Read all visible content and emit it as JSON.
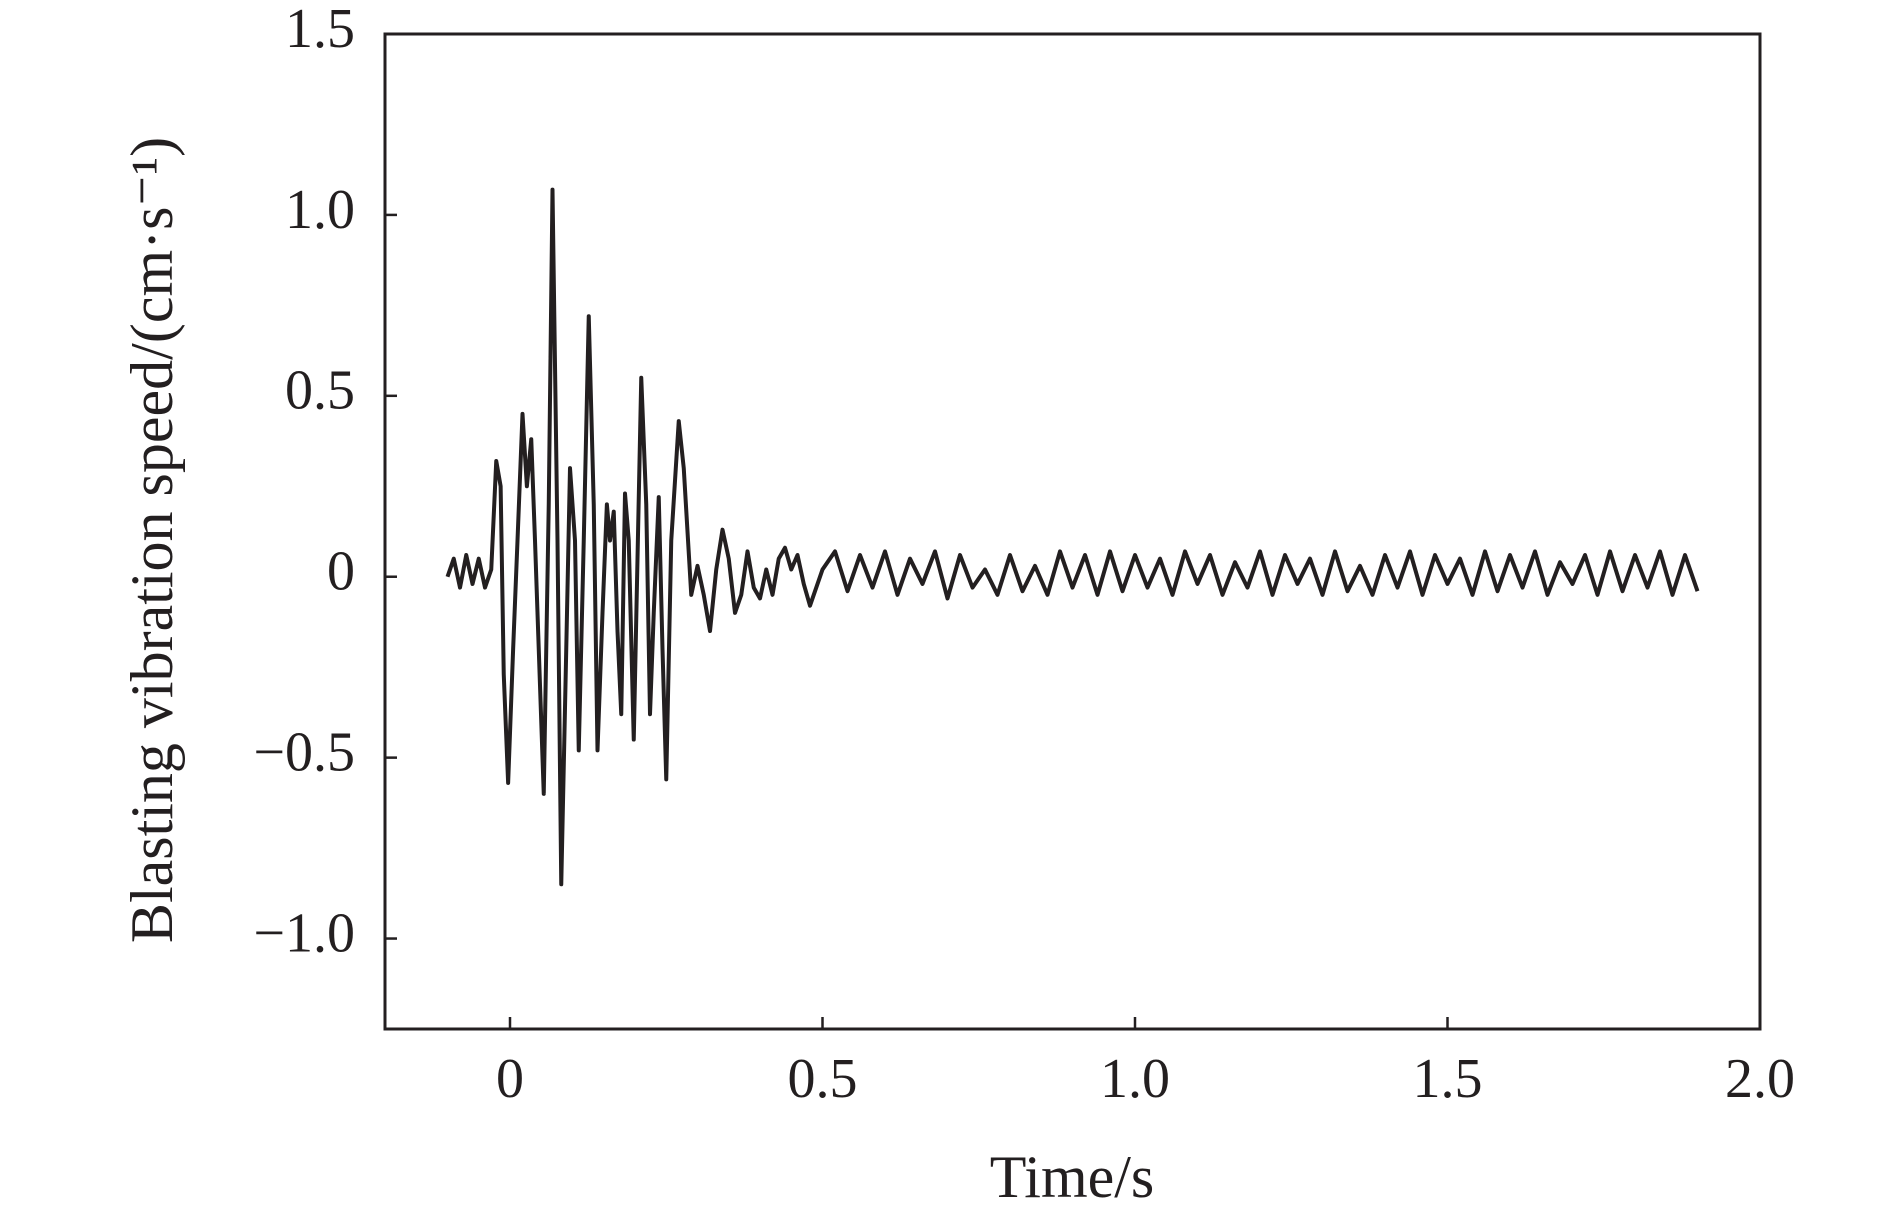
{
  "chart_data": {
    "type": "line",
    "xlabel": "Time/s",
    "ylabel": "Blasting vibration speed/(cm·s⁻¹)",
    "xlim": [
      -0.2,
      2.0
    ],
    "ylim": [
      -1.25,
      1.5
    ],
    "xticks": [
      0,
      0.5,
      {
        "value": 1,
        "label": "1.0"
      },
      1.5,
      {
        "value": 2,
        "label": "2.0"
      }
    ],
    "yticks": [
      {
        "value": -1,
        "label": "−1.0"
      },
      {
        "value": -0.5,
        "label": "−0.5"
      },
      0,
      0.5,
      {
        "value": 1,
        "label": "1.0"
      },
      1.5
    ],
    "grid": false,
    "series": [
      {
        "color": "#231f20",
        "x": [
          -0.1,
          -0.09,
          -0.08,
          -0.07,
          -0.06,
          -0.05,
          -0.04,
          -0.03,
          -0.022,
          -0.015,
          -0.01,
          -0.003,
          0.005,
          0.012,
          0.02,
          0.027,
          0.034,
          0.04,
          0.048,
          0.054,
          0.062,
          0.068,
          0.076,
          0.082,
          0.09,
          0.096,
          0.104,
          0.11,
          0.118,
          0.126,
          0.134,
          0.14,
          0.148,
          0.155,
          0.16,
          0.166,
          0.172,
          0.178,
          0.184,
          0.19,
          0.198,
          0.21,
          0.218,
          0.224,
          0.23,
          0.238,
          0.244,
          0.25,
          0.258,
          0.27,
          0.278,
          0.29,
          0.3,
          0.31,
          0.32,
          0.33,
          0.34,
          0.35,
          0.36,
          0.37,
          0.38,
          0.39,
          0.4,
          0.41,
          0.42,
          0.43,
          0.44,
          0.45,
          0.46,
          0.47,
          0.48,
          0.5,
          0.52,
          0.54,
          0.56,
          0.58,
          0.6,
          0.62,
          0.64,
          0.66,
          0.68,
          0.7,
          0.72,
          0.74,
          0.76,
          0.78,
          0.8,
          0.82,
          0.84,
          0.86,
          0.88,
          0.9,
          0.92,
          0.94,
          0.96,
          0.98,
          1.0,
          1.02,
          1.04,
          1.06,
          1.08,
          1.1,
          1.12,
          1.14,
          1.16,
          1.18,
          1.2,
          1.22,
          1.24,
          1.26,
          1.28,
          1.3,
          1.32,
          1.34,
          1.36,
          1.38,
          1.4,
          1.42,
          1.44,
          1.46,
          1.48,
          1.5,
          1.52,
          1.54,
          1.56,
          1.58,
          1.6,
          1.62,
          1.64,
          1.66,
          1.68,
          1.7,
          1.72,
          1.74,
          1.76,
          1.78,
          1.8,
          1.82,
          1.84,
          1.86,
          1.88,
          1.9
        ],
        "values": [
          0,
          0.05,
          -0.03,
          0.06,
          -0.02,
          0.05,
          -0.03,
          0.02,
          0.32,
          0.25,
          -0.27,
          -0.57,
          -0.2,
          0.1,
          0.45,
          0.25,
          0.38,
          0.1,
          -0.3,
          -0.6,
          0.2,
          1.07,
          0.1,
          -0.85,
          -0.2,
          0.3,
          0.1,
          -0.48,
          0.1,
          0.72,
          0.2,
          -0.48,
          -0.1,
          0.2,
          0.1,
          0.18,
          -0.15,
          -0.38,
          0.23,
          0.1,
          -0.45,
          0.55,
          0.2,
          -0.38,
          -0.1,
          0.22,
          -0.2,
          -0.56,
          0.1,
          0.43,
          0.3,
          -0.05,
          0.03,
          -0.05,
          -0.15,
          0.02,
          0.13,
          0.05,
          -0.1,
          -0.05,
          0.07,
          -0.03,
          -0.06,
          0.02,
          -0.05,
          0.05,
          0.08,
          0.02,
          0.06,
          -0.02,
          -0.08,
          0.02,
          0.07,
          -0.04,
          0.06,
          -0.03,
          0.07,
          -0.05,
          0.05,
          -0.02,
          0.07,
          -0.06,
          0.06,
          -0.03,
          0.02,
          -0.05,
          0.06,
          -0.04,
          0.03,
          -0.05,
          0.07,
          -0.03,
          0.06,
          -0.05,
          0.07,
          -0.04,
          0.06,
          -0.03,
          0.05,
          -0.05,
          0.07,
          -0.02,
          0.06,
          -0.05,
          0.04,
          -0.03,
          0.07,
          -0.05,
          0.06,
          -0.02,
          0.05,
          -0.05,
          0.07,
          -0.04,
          0.03,
          -0.05,
          0.06,
          -0.03,
          0.07,
          -0.05,
          0.06,
          -0.02,
          0.05,
          -0.05,
          0.07,
          -0.04,
          0.06,
          -0.03,
          0.07,
          -0.05,
          0.04,
          -0.02,
          0.06,
          -0.05,
          0.07,
          -0.04,
          0.06,
          -0.03,
          0.07,
          -0.05,
          0.06,
          -0.04
        ]
      }
    ]
  }
}
